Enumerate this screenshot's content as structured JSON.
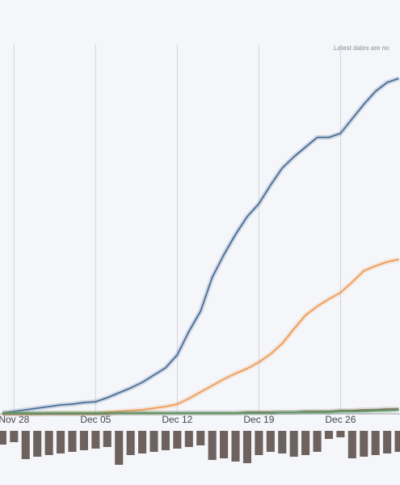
{
  "chart_data": [
    {
      "type": "line",
      "annotation": "Latest dates are no",
      "x": [
        -1,
        0,
        1,
        2,
        3,
        4,
        5,
        6,
        7,
        8,
        9,
        10,
        11,
        12,
        13,
        14,
        15,
        16,
        17,
        18,
        19,
        20,
        21,
        22,
        23,
        24,
        25,
        26,
        27,
        28,
        29,
        30,
        31,
        32,
        33
      ],
      "xlim": [
        -1.2,
        33.1
      ],
      "xticks": [
        {
          "value": 0,
          "label": "Nov 28"
        },
        {
          "value": 7,
          "label": "Dec 05"
        },
        {
          "value": 14,
          "label": "Dec 12"
        },
        {
          "value": 21,
          "label": "Dec 19"
        },
        {
          "value": 28,
          "label": "Dec 26"
        }
      ],
      "ylim": [
        0,
        452
      ],
      "grid": true,
      "series": [
        {
          "color": "#4a6d96",
          "values": [
            1,
            3,
            5,
            7,
            9,
            11,
            12,
            14,
            15,
            20,
            26,
            32,
            39,
            48,
            57,
            73,
            102,
            127,
            169,
            197,
            222,
            244,
            260,
            283,
            304,
            318,
            330,
            342,
            342,
            347,
            365,
            383,
            399,
            410,
            415
          ]
        },
        {
          "color": "#ee9b55",
          "values": [
            0,
            0,
            0,
            0,
            1,
            1,
            1,
            1,
            1,
            2,
            3,
            4,
            5,
            7,
            9,
            12,
            19,
            27,
            35,
            43,
            50,
            56,
            64,
            74,
            87,
            105,
            122,
            133,
            142,
            150,
            163,
            177,
            183,
            188,
            191
          ]
        },
        {
          "color": "#8a6a52",
          "values": [
            0,
            0,
            0,
            0,
            0,
            0,
            0,
            0,
            0,
            0,
            1,
            1,
            1,
            1,
            1,
            1,
            1,
            1,
            1,
            1,
            1,
            2,
            2,
            2,
            2,
            2,
            3,
            3,
            3,
            4,
            4,
            5,
            5,
            6,
            6
          ]
        },
        {
          "color": "#5a9a6a",
          "values": [
            1,
            1,
            1,
            1,
            1,
            1,
            1,
            1,
            1,
            1,
            1,
            1,
            1,
            1,
            1,
            1,
            1,
            1,
            1,
            1,
            1,
            1,
            1,
            1,
            2,
            2,
            2,
            2,
            2,
            3,
            3,
            3,
            4,
            4,
            5
          ]
        }
      ]
    },
    {
      "type": "bar",
      "x": [
        -1,
        0,
        1,
        2,
        3,
        4,
        5,
        6,
        7,
        8,
        9,
        10,
        11,
        12,
        13,
        14,
        15,
        16,
        17,
        18,
        19,
        20,
        21,
        22,
        23,
        24,
        25,
        26,
        27,
        28,
        29,
        30,
        31,
        32,
        33
      ],
      "xlim": [
        -1.2,
        33.1
      ],
      "ylim": [
        -50,
        0
      ],
      "color": "#6e625e",
      "values": [
        -17,
        -14,
        -35,
        -32,
        -30,
        -28,
        -26,
        -24,
        -22,
        -20,
        -42,
        -30,
        -28,
        -26,
        -24,
        -22,
        -20,
        -18,
        -36,
        -34,
        -38,
        -40,
        -30,
        -26,
        -28,
        -32,
        -30,
        -26,
        -10,
        -8,
        -34,
        -32,
        -30,
        -28,
        -26
      ]
    }
  ]
}
